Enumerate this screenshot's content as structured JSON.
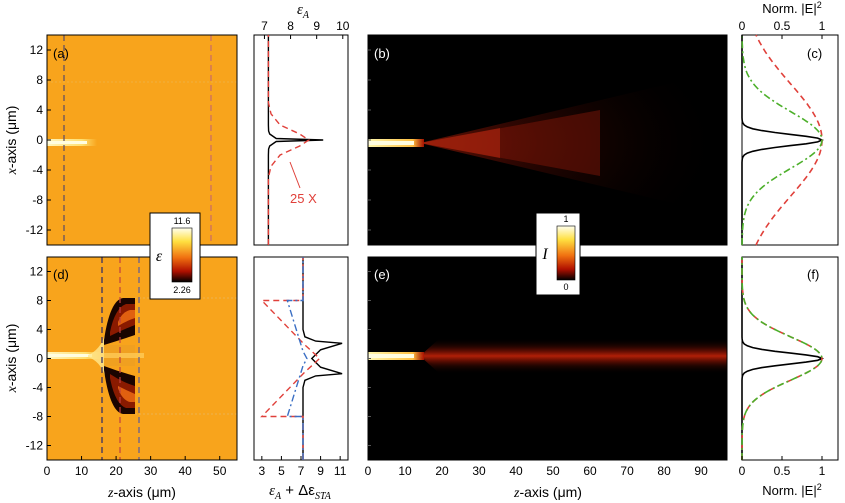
{
  "chart_data": [
    {
      "panel": "(a)",
      "type": "heatmap",
      "ylabel_italic": "x",
      "ylabel_rest": "-axis (μm)",
      "yticks": [
        "12",
        "8",
        "4",
        "0",
        "-4",
        "-8",
        "-12"
      ],
      "ytick_values": [
        12,
        8,
        4,
        0,
        -4,
        -8,
        -12
      ],
      "ylim": [
        -14,
        14
      ],
      "xlim": [
        0,
        55
      ],
      "dashed_lines_z": [
        5,
        45
      ],
      "colors": {
        "background": "#F8A41C",
        "left_dash": "#6A5A6E",
        "right_dash": "#C87070"
      }
    },
    {
      "panel": "(d)",
      "type": "heatmap",
      "ylabel_italic": "x",
      "ylabel_rest": "-axis (μm)",
      "xlabel_italic": "z",
      "xlabel_rest": "-axis (μm)",
      "xticks": [
        "0",
        "10",
        "20",
        "30",
        "40",
        "50"
      ],
      "xtick_values": [
        0,
        10,
        20,
        30,
        40,
        50
      ],
      "yticks": [
        "12",
        "8",
        "4",
        "0",
        "-4",
        "-8",
        "-12"
      ],
      "ytick_values": [
        12,
        8,
        4,
        0,
        -4,
        -8,
        -12
      ],
      "xlim": [
        0,
        55
      ],
      "ylim": [
        -14,
        14
      ],
      "dashed_lines_z": [
        15,
        20,
        25
      ]
    },
    {
      "panel": "profile-top",
      "type": "line",
      "top_axis_label_base": "ε",
      "top_axis_label_sub": "A",
      "xticks": [
        "7",
        "8",
        "9",
        "10"
      ],
      "xtick_values": [
        7,
        8,
        9,
        10
      ],
      "xlim": [
        6.6,
        10.2
      ],
      "annotation": "25 X",
      "series": [
        {
          "color": "#000000",
          "style": "solid",
          "x": [
            7.15,
            7.15,
            7.16,
            7.2,
            7.45,
            9.25,
            7.45,
            7.2,
            7.16,
            7.15,
            7.15
          ],
          "y": [
            -14,
            -2,
            -1.2,
            -0.8,
            -0.2,
            0,
            0.2,
            0.8,
            1.2,
            2,
            14
          ]
        },
        {
          "color": "#E0403A",
          "style": "dashed",
          "x": [
            7.15,
            7.15,
            7.25,
            7.6,
            8.35,
            8.7,
            8.35,
            7.6,
            7.25,
            7.15,
            7.15
          ],
          "y": [
            -14,
            -5,
            -3.5,
            -2,
            -0.8,
            0,
            0.8,
            2,
            3.5,
            5,
            14
          ]
        }
      ]
    },
    {
      "panel": "profile-bottom",
      "type": "line",
      "bottom_axis_label": "ε",
      "bottom_axis_sub_a": "A",
      "bottom_axis_plus": " + Δε",
      "bottom_axis_sub_sta": "STA",
      "xticks": [
        "3",
        "5",
        "7",
        "9",
        "11"
      ],
      "xtick_values": [
        3,
        5,
        7,
        9,
        11
      ],
      "xlim": [
        2.2,
        11.8
      ],
      "series": [
        {
          "color": "#000000",
          "style": "solid",
          "x": [
            7.2,
            7.2,
            7.4,
            8.5,
            11.2,
            9.0,
            8.1,
            9.0,
            11.2,
            8.5,
            7.4,
            7.2,
            7.2
          ],
          "y": [
            -14,
            -4,
            -3,
            -2.4,
            -2.1,
            -1.2,
            0,
            1.2,
            2.1,
            2.4,
            3,
            4,
            14
          ]
        },
        {
          "color": "#E0403A",
          "style": "dashed",
          "x": [
            7.2,
            7.2,
            3.0,
            7.3,
            8.9,
            7.3,
            3.0,
            7.2,
            7.2
          ],
          "y": [
            -14,
            -8,
            -8,
            -2,
            0,
            2,
            8,
            8,
            14
          ]
        },
        {
          "color": "#3B6FC4",
          "style": "dashdot",
          "x": [
            7.2,
            7.2,
            5.6,
            7.2,
            7.6,
            7.2,
            5.6,
            7.2,
            7.2
          ],
          "y": [
            -14,
            -8,
            -8,
            -1,
            0,
            1,
            8,
            8,
            14
          ]
        }
      ]
    },
    {
      "panel": "(b)",
      "type": "heatmap",
      "xlim": [
        0,
        97
      ],
      "ylim": [
        -14,
        14
      ],
      "description_values": {
        "source_length_z": 14,
        "spread": "diverging beam"
      }
    },
    {
      "panel": "(e)",
      "type": "heatmap",
      "xlabel_italic": "z",
      "xlabel_rest": "-axis (μm)",
      "xticks": [
        "0",
        "10",
        "20",
        "30",
        "40",
        "50",
        "60",
        "70",
        "80",
        "90"
      ],
      "xtick_values": [
        0,
        10,
        20,
        30,
        40,
        50,
        60,
        70,
        80,
        90
      ],
      "xlim": [
        0,
        97
      ],
      "ylim": [
        -14,
        14
      ]
    },
    {
      "panel": "(c)",
      "type": "line",
      "top_axis_label": "Norm. |E|",
      "top_axis_sup": "2",
      "xticks": [
        "0",
        "0.5",
        "1"
      ],
      "xtick_values": [
        0,
        0.5,
        1
      ],
      "xlim": [
        0,
        1.2
      ],
      "series": [
        {
          "color": "#000000",
          "style": "solid",
          "profile": "gaussian",
          "sigma": 0.75
        },
        {
          "color": "#E0403A",
          "style": "dashed",
          "profile": "gaussian",
          "sigma": 7.5
        },
        {
          "color": "#4CAF2A",
          "style": "dashdot",
          "profile": "gaussian",
          "sigma": 3.8
        }
      ]
    },
    {
      "panel": "(f)",
      "type": "line",
      "bottom_axis_label": "Norm. |E|",
      "bottom_axis_sup": "2",
      "xticks": [
        "0",
        "0.5",
        "1"
      ],
      "xtick_values": [
        0,
        0.5,
        1
      ],
      "xlim": [
        0,
        1.2
      ],
      "series": [
        {
          "color": "#000000",
          "style": "solid",
          "profile": "gaussian",
          "sigma": 0.75
        },
        {
          "color": "#E0403A",
          "style": "dashed",
          "profile": "gaussian",
          "sigma": 3.0
        },
        {
          "color": "#4CAF2A",
          "style": "dashdot",
          "profile": "gaussian",
          "sigma": 3.0
        }
      ]
    }
  ],
  "colorbars": {
    "epsilon": {
      "symbol": "ε",
      "max": "11.6",
      "min": "2.26"
    },
    "intensity": {
      "symbol": "I",
      "max": "1",
      "min": "0"
    }
  }
}
